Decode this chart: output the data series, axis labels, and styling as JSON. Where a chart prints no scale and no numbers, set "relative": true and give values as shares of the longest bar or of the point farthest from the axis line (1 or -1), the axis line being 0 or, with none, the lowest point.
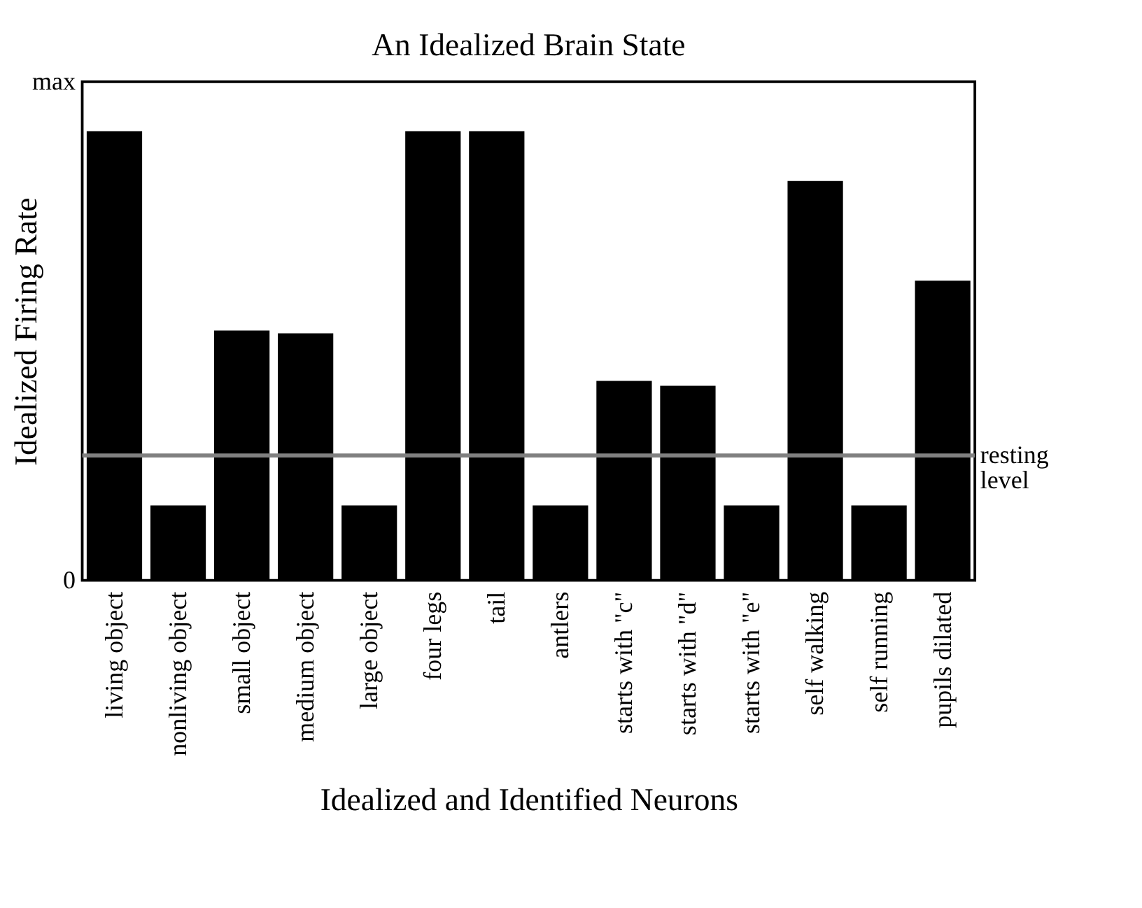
{
  "chart_data": {
    "type": "bar",
    "title": "An Idealized Brain State",
    "xlabel": "Idealized and Identified Neurons",
    "ylabel": "Idealized Firing Rate",
    "categories": [
      "living object",
      "nonliving object",
      "small object",
      "medium object",
      "large object",
      "four legs",
      "tail",
      "antlers",
      "starts with \"c\"",
      "starts with \"d\"",
      "starts with \"e\"",
      "self walking",
      "self running",
      "pupils dilated"
    ],
    "values": [
      1,
      0.167,
      0.556,
      0.55,
      0.167,
      1,
      1,
      0.167,
      0.444,
      0.433,
      0.167,
      0.889,
      0.167,
      0.667
    ],
    "color": "#000000",
    "relative": true,
    "annotations": [
      "0",
      "max"
    ],
    "ref_lines": [
      {
        "axis": "y",
        "value": 0.278,
        "label": "resting level",
        "color": "#808080"
      }
    ],
    "grid": false
  }
}
